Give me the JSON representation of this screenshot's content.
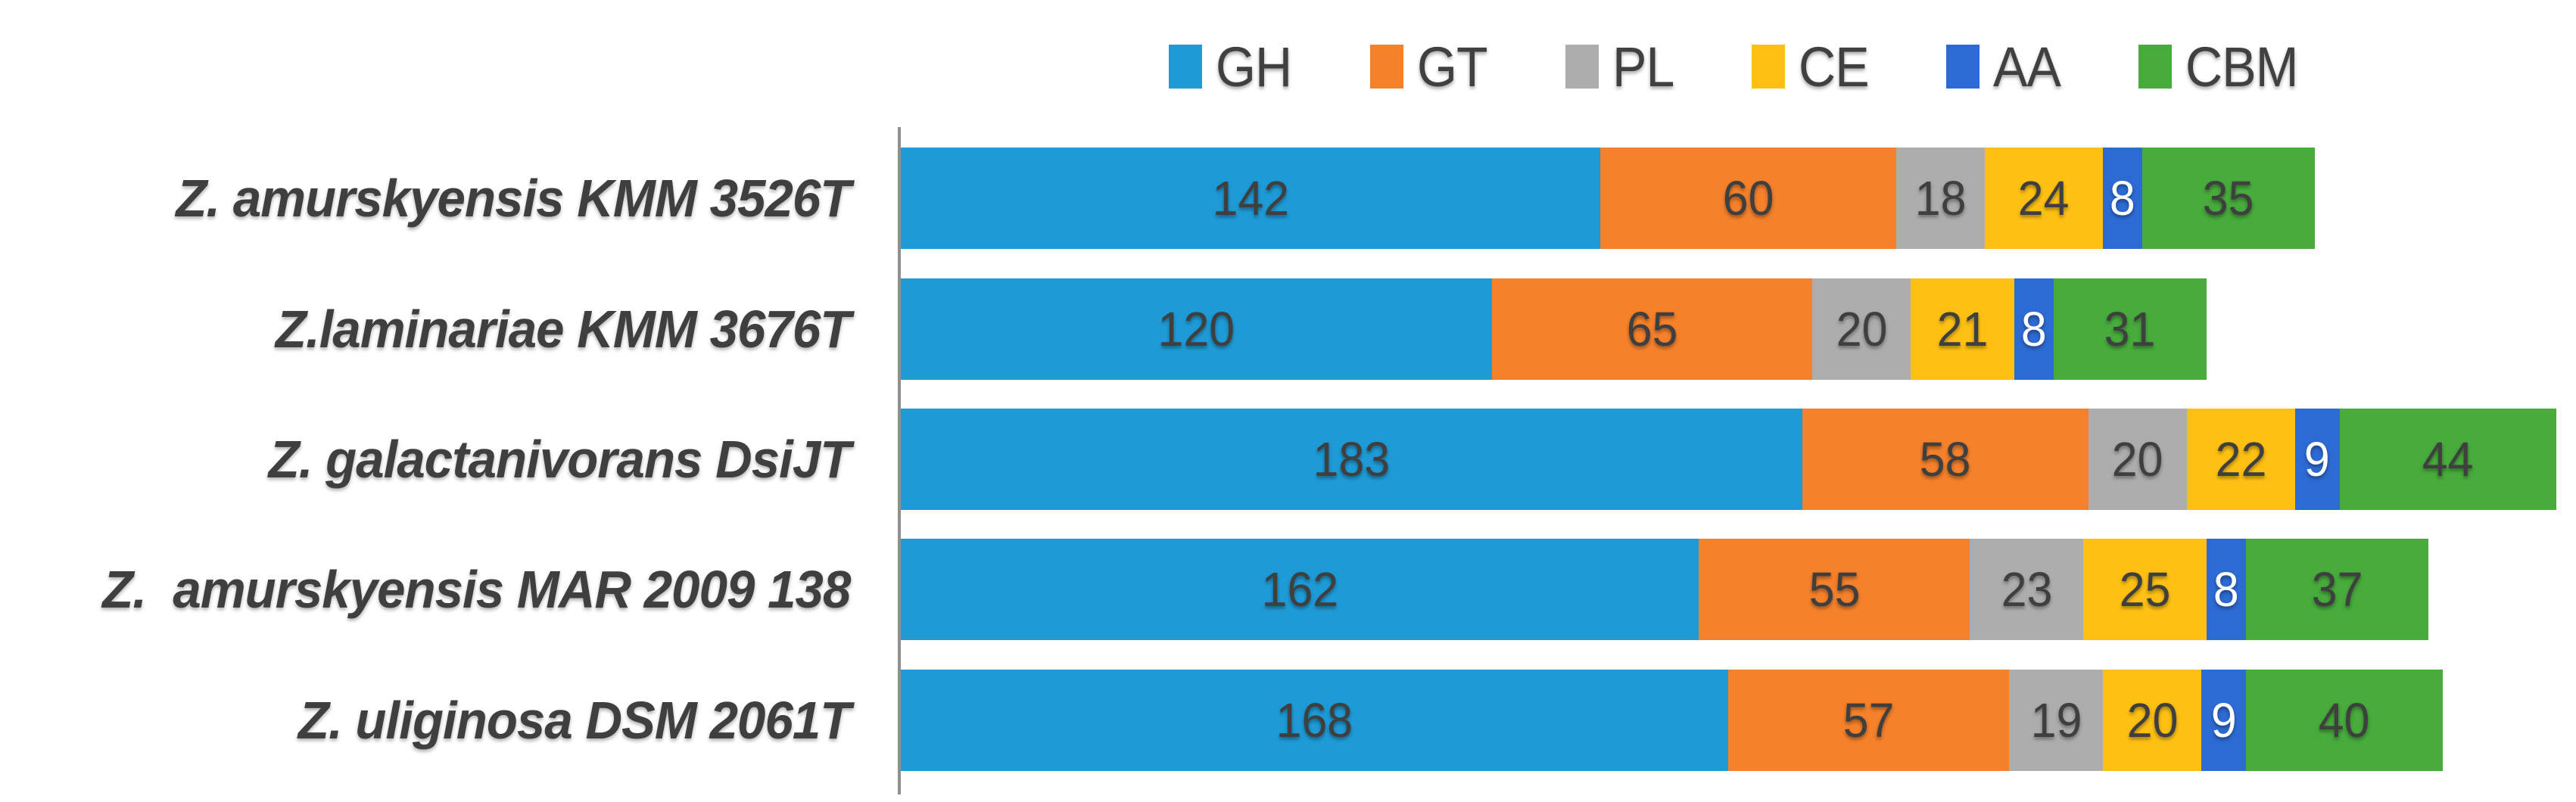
{
  "chart_data": {
    "type": "bar",
    "stacked": true,
    "orientation": "horizontal",
    "title": "",
    "xlabel": "",
    "ylabel": "",
    "grid": false,
    "legend_position": "top",
    "axis_max": 340,
    "categories": [
      "Z. amurskyensis KMM 3526T",
      "Z.laminariae KMM 3676T",
      "Z. galactanivorans DsiJT",
      "Z.  amurskyensis MAR 2009 138",
      "Z. uliginosa DSM 2061T"
    ],
    "series": [
      {
        "name": "GH",
        "color": "#1E9BD7",
        "label_color": "#3f3f3f",
        "values": [
          142,
          120,
          183,
          162,
          168
        ]
      },
      {
        "name": "GT",
        "color": "#F5812B",
        "label_color": "#3f3f3f",
        "values": [
          60,
          65,
          58,
          55,
          57
        ]
      },
      {
        "name": "PL",
        "color": "#ADADAD",
        "label_color": "#3f3f3f",
        "values": [
          18,
          20,
          20,
          23,
          19
        ]
      },
      {
        "name": "CE",
        "color": "#FEC113",
        "label_color": "#3f3f3f",
        "values": [
          24,
          21,
          22,
          25,
          20
        ]
      },
      {
        "name": "AA",
        "color": "#2D6BD4",
        "label_color": "#ffffff",
        "values": [
          8,
          8,
          9,
          8,
          9
        ]
      },
      {
        "name": "CBM",
        "color": "#47AC3C",
        "label_color": "#3f3f3f",
        "values": [
          35,
          31,
          44,
          37,
          40
        ]
      }
    ],
    "totals": [
      287,
      265,
      336,
      310,
      313
    ],
    "axis_line_color": "#8f8f8f"
  }
}
